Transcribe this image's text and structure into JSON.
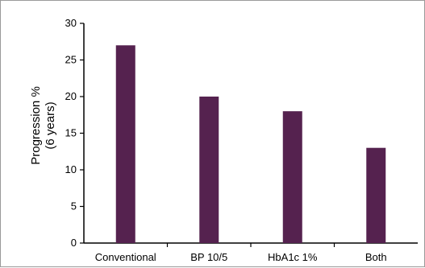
{
  "chart_data": {
    "type": "bar",
    "title": "",
    "xlabel": "",
    "ylabel_lines": [
      "Progression %",
      "(6 years)"
    ],
    "categories": [
      "Conventional",
      "BP 10/5",
      "HbA1c 1%",
      "Both"
    ],
    "values": [
      27,
      20,
      18,
      13
    ],
    "ylim": [
      0,
      30
    ],
    "yticks": [
      0,
      5,
      10,
      15,
      20,
      25,
      30
    ],
    "grid": false,
    "bar_color": "#55224f"
  }
}
